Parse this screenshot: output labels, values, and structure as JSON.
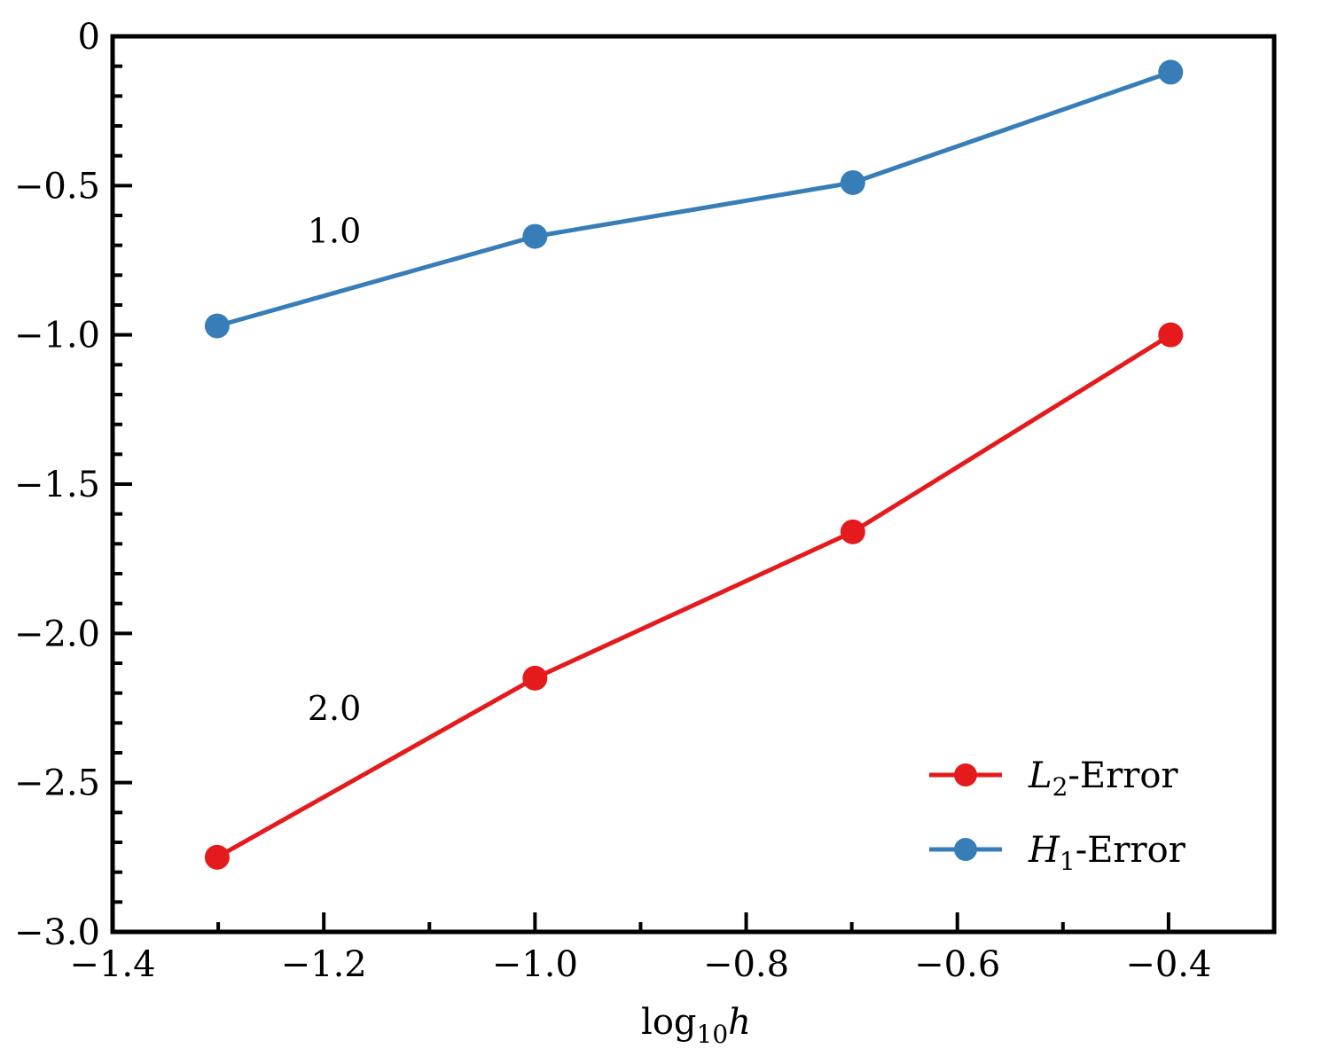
{
  "chart_data": {
    "type": "line",
    "xlabel": {
      "base": "log",
      "sub": "10",
      "var": "h"
    },
    "ylabel": "",
    "xlim": [
      -1.4,
      -0.3
    ],
    "ylim": [
      -3.0,
      0.0
    ],
    "xticks": [
      -1.4,
      -1.2,
      -1.0,
      -0.8,
      -0.6,
      -0.4
    ],
    "xtick_labels": [
      "−1.4",
      "−1.2",
      "−1.0",
      "−0.8",
      "−0.6",
      "−0.4"
    ],
    "yticks": [
      0.0,
      -0.5,
      -1.0,
      -1.5,
      -2.0,
      -2.5,
      -3.0
    ],
    "ytick_labels": [
      "0",
      "−0.5",
      "−1.0",
      "−1.5",
      "−2.0",
      "−2.5",
      "−3.0"
    ],
    "grid": false,
    "legend_position": "lower-right",
    "series": [
      {
        "name": {
          "symbol": "L",
          "sub": "2",
          "suffix": "-Error"
        },
        "color": "#e41a1c",
        "x": [
          -1.301,
          -1.0,
          -0.699,
          -0.398
        ],
        "y": [
          -2.75,
          -2.15,
          -1.66,
          -1.0
        ]
      },
      {
        "name": {
          "symbol": "H",
          "sub": "1",
          "suffix": "-Error"
        },
        "color": "#377eb8",
        "x": [
          -1.301,
          -1.0,
          -0.699,
          -0.398
        ],
        "y": [
          -0.97,
          -0.67,
          -0.49,
          -0.12
        ]
      }
    ],
    "annotations": [
      {
        "text": "1.0",
        "x": -1.19,
        "y": -0.69
      },
      {
        "text": "2.0",
        "x": -1.19,
        "y": -2.29
      }
    ]
  }
}
